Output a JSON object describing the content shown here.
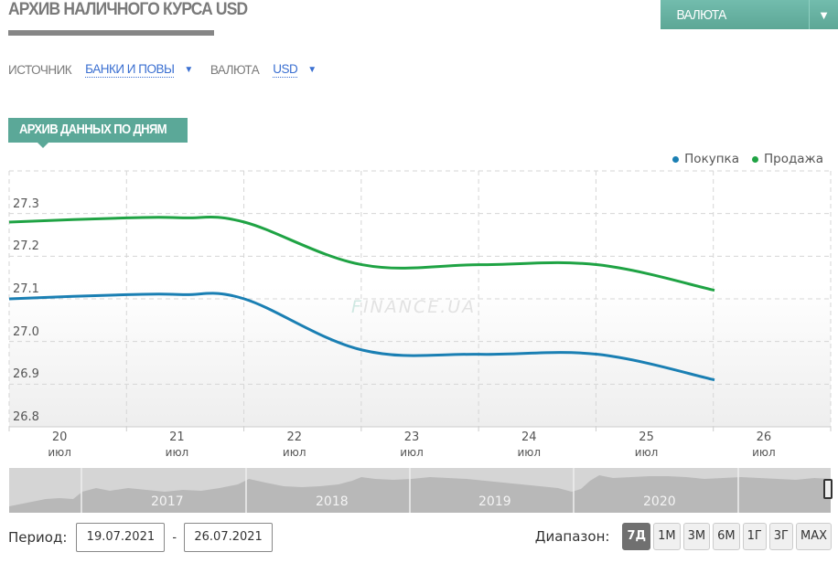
{
  "header": {
    "title": "АРХИВ НАЛИЧНОГО КУРСА USD",
    "currency_button": "ВАЛЮТА"
  },
  "filters": {
    "source_label": "ИСТОЧНИК",
    "source_value": "БАНКИ И ПОВЫ",
    "currency_label": "ВАЛЮТА",
    "currency_value": "USD"
  },
  "section": {
    "tab_label": "АРХИВ ДАННЫХ ПО ДНЯМ"
  },
  "legend": {
    "buy": "Покупка",
    "sell": "Продажа"
  },
  "colors": {
    "buy": "#1a7fb3",
    "sell": "#1fa344",
    "accent": "#5ba898"
  },
  "watermark": {
    "f": "F",
    "rest": "INANCE.UA"
  },
  "chart_data": {
    "type": "line",
    "title": "АРХИВ ДАННЫХ ПО ДНЯМ",
    "xlabel": "",
    "ylabel": "",
    "x_ticks": [
      {
        "day": "20",
        "month": "июл"
      },
      {
        "day": "21",
        "month": "июл"
      },
      {
        "day": "22",
        "month": "июл"
      },
      {
        "day": "23",
        "month": "июл"
      },
      {
        "day": "24",
        "month": "июл"
      },
      {
        "day": "25",
        "month": "июл"
      },
      {
        "day": "26",
        "month": "июл"
      }
    ],
    "y_ticks": [
      "27.3",
      "27.2",
      "27.1",
      "27.0",
      "26.9",
      "26.8"
    ],
    "ylim": [
      26.8,
      27.4
    ],
    "grid": true,
    "legend_position": "top-right",
    "x": [
      "19.07",
      "20.07",
      "21.07",
      "22.07",
      "23.07",
      "24.07",
      "25.07",
      "26.07"
    ],
    "series": [
      {
        "name": "Покупка",
        "color": "#1a7fb3",
        "values": [
          27.1,
          27.11,
          27.11,
          27.1,
          26.98,
          26.97,
          26.97,
          26.91
        ]
      },
      {
        "name": "Продажа",
        "color": "#1fa344",
        "values": [
          27.28,
          27.29,
          27.29,
          27.28,
          27.18,
          27.18,
          27.18,
          27.12
        ]
      }
    ]
  },
  "navigator": {
    "years": [
      "2017",
      "2018",
      "2019",
      "2020"
    ]
  },
  "period": {
    "label": "Период:",
    "from": "19.07.2021",
    "separator": "-",
    "to": "26.07.2021"
  },
  "range": {
    "label": "Диапазон:",
    "buttons": [
      "7Д",
      "1М",
      "3М",
      "6М",
      "1Г",
      "3Г",
      "MAX"
    ],
    "active": "7Д"
  }
}
